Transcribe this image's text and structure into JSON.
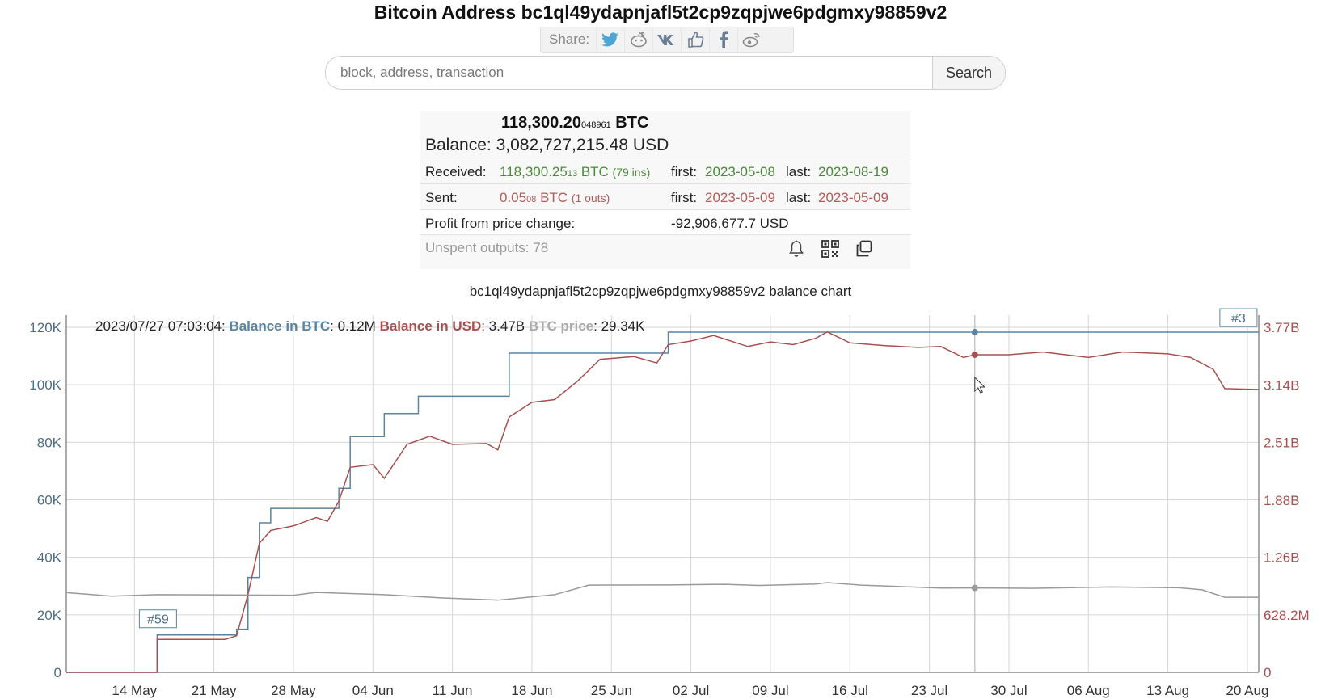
{
  "header": {
    "title": "Bitcoin Address bc1ql49ydapnjafl5t2cp9zqpjwe6pdgmxy98859v2",
    "share_label": "Share:",
    "share_icons": [
      "twitter-icon",
      "reddit-icon",
      "vk-icon",
      "like-icon",
      "facebook-icon",
      "weibo-icon"
    ]
  },
  "search": {
    "placeholder": "block, address, transaction",
    "button": "Search"
  },
  "info": {
    "balance_btc_main": "118,300.20",
    "balance_btc_small": "048961",
    "balance_btc_unit": "BTC",
    "balance_label": "Balance:",
    "balance_usd": "3,082,727,215.48 USD",
    "received_label": "Received:",
    "received_main": "118,300.25",
    "received_small": "13",
    "received_unit": "BTC",
    "received_count": "(79 ins)",
    "received_first_label": "first:",
    "received_first": "2023-05-08",
    "received_last_label": "last:",
    "received_last": "2023-08-19",
    "sent_label": "Sent:",
    "sent_main": "0.05",
    "sent_small": "08",
    "sent_unit": "BTC",
    "sent_count": "(1 outs)",
    "sent_first_label": "first:",
    "sent_first": "2023-05-09",
    "sent_last_label": "last:",
    "sent_last": "2023-05-09",
    "profit_label": "Profit from price change:",
    "profit_value": "-92,906,677.7 USD",
    "unspent": "Unspent outputs: 78",
    "tools": [
      "bell-icon",
      "qr-code-icon",
      "copy-icon"
    ]
  },
  "chart_caption": "bc1ql49ydapnjafl5t2cp9zqpjwe6pdgmxy98859v2 balance chart",
  "readout": {
    "datetime": "2023/07/27 07:03:04:",
    "btc_label": "Balance in BTC",
    "btc_value": ": 0.12M",
    "usd_label": "Balance in USD",
    "usd_value": ": 3.47B",
    "price_label": "BTC price",
    "price_value": ": 29.34K"
  },
  "colors": {
    "btc": "#5a85a0",
    "usd": "#a85050",
    "price": "#9a9a9a",
    "grid": "#d6d6d6"
  },
  "chart_data": {
    "type": "line",
    "x_start": "2023-05-08",
    "x_end": "2023-08-21",
    "x_tick_labels": [
      "14 May",
      "21 May",
      "28 May",
      "04 Jun",
      "11 Jun",
      "18 Jun",
      "25 Jun",
      "02 Jul",
      "09 Jul",
      "16 Jul",
      "23 Jul",
      "30 Jul",
      "06 Aug",
      "13 Aug",
      "20 Aug"
    ],
    "x_tick_dates": [
      "2023-05-14",
      "2023-05-21",
      "2023-05-28",
      "2023-06-04",
      "2023-06-11",
      "2023-06-18",
      "2023-06-25",
      "2023-07-02",
      "2023-07-09",
      "2023-07-16",
      "2023-07-23",
      "2023-07-30",
      "2023-08-06",
      "2023-08-13",
      "2023-08-20"
    ],
    "y_left": {
      "min": 0,
      "max": 120000,
      "ticks": [
        0,
        20000,
        40000,
        60000,
        80000,
        100000,
        120000
      ],
      "tick_labels": [
        "0",
        "20K",
        "40K",
        "60K",
        "80K",
        "100K",
        "120K"
      ]
    },
    "y_right": {
      "min": 0,
      "max": 3770000000,
      "ticks": [
        0,
        628200000,
        1260000000,
        1880000000,
        2510000000,
        3140000000,
        3770000000
      ],
      "tick_labels": [
        "0",
        "628.2M",
        "1.26B",
        "1.88B",
        "2.51B",
        "3.14B",
        "3.77B"
      ]
    },
    "grid": true,
    "series": [
      {
        "name": "Balance in BTC",
        "axis": "left",
        "step": true,
        "points": [
          [
            "2023-05-08",
            0
          ],
          [
            "2023-05-16",
            13000
          ],
          [
            "2023-05-23",
            15000
          ],
          [
            "2023-05-24",
            33000
          ],
          [
            "2023-05-25",
            52000
          ],
          [
            "2023-05-26",
            57000
          ],
          [
            "2023-06-01",
            64000
          ],
          [
            "2023-06-02",
            82000
          ],
          [
            "2023-06-05",
            90000
          ],
          [
            "2023-06-08",
            96000
          ],
          [
            "2023-06-16",
            111000
          ],
          [
            "2023-06-30",
            118300
          ],
          [
            "2023-08-21",
            118300
          ]
        ]
      },
      {
        "name": "Balance in USD",
        "axis": "right",
        "step": false,
        "points": [
          [
            "2023-05-08",
            0
          ],
          [
            "2023-05-16",
            0
          ],
          [
            "2023-05-16",
            360000000
          ],
          [
            "2023-05-22",
            360000000
          ],
          [
            "2023-05-23",
            400000000
          ],
          [
            "2023-05-24",
            850000000
          ],
          [
            "2023-05-25",
            1410000000
          ],
          [
            "2023-05-26",
            1550000000
          ],
          [
            "2023-05-28",
            1600000000
          ],
          [
            "2023-05-30",
            1690000000
          ],
          [
            "2023-05-31",
            1650000000
          ],
          [
            "2023-06-01",
            1870000000
          ],
          [
            "2023-06-02",
            2240000000
          ],
          [
            "2023-06-04",
            2270000000
          ],
          [
            "2023-06-05",
            2120000000
          ],
          [
            "2023-06-07",
            2490000000
          ],
          [
            "2023-06-09",
            2580000000
          ],
          [
            "2023-06-11",
            2490000000
          ],
          [
            "2023-06-14",
            2500000000
          ],
          [
            "2023-06-15",
            2430000000
          ],
          [
            "2023-06-16",
            2790000000
          ],
          [
            "2023-06-18",
            2950000000
          ],
          [
            "2023-06-20",
            2980000000
          ],
          [
            "2023-06-22",
            3180000000
          ],
          [
            "2023-06-24",
            3420000000
          ],
          [
            "2023-06-27",
            3450000000
          ],
          [
            "2023-06-29",
            3380000000
          ],
          [
            "2023-06-30",
            3580000000
          ],
          [
            "2023-07-02",
            3620000000
          ],
          [
            "2023-07-04",
            3680000000
          ],
          [
            "2023-07-07",
            3560000000
          ],
          [
            "2023-07-09",
            3610000000
          ],
          [
            "2023-07-11",
            3580000000
          ],
          [
            "2023-07-13",
            3650000000
          ],
          [
            "2023-07-14",
            3720000000
          ],
          [
            "2023-07-16",
            3600000000
          ],
          [
            "2023-07-19",
            3570000000
          ],
          [
            "2023-07-22",
            3550000000
          ],
          [
            "2023-07-24",
            3560000000
          ],
          [
            "2023-07-26",
            3440000000
          ],
          [
            "2023-07-27",
            3470000000
          ],
          [
            "2023-07-30",
            3470000000
          ],
          [
            "2023-08-02",
            3500000000
          ],
          [
            "2023-08-06",
            3440000000
          ],
          [
            "2023-08-09",
            3500000000
          ],
          [
            "2023-08-13",
            3480000000
          ],
          [
            "2023-08-15",
            3440000000
          ],
          [
            "2023-08-17",
            3310000000
          ],
          [
            "2023-08-18",
            3100000000
          ],
          [
            "2023-08-21",
            3090000000
          ]
        ]
      },
      {
        "name": "BTC price",
        "axis": "left",
        "step": false,
        "points": [
          [
            "2023-05-08",
            27700
          ],
          [
            "2023-05-12",
            26500
          ],
          [
            "2023-05-16",
            27000
          ],
          [
            "2023-05-22",
            26900
          ],
          [
            "2023-05-28",
            26800
          ],
          [
            "2023-05-30",
            27800
          ],
          [
            "2023-06-05",
            27000
          ],
          [
            "2023-06-10",
            25900
          ],
          [
            "2023-06-15",
            25100
          ],
          [
            "2023-06-20",
            27000
          ],
          [
            "2023-06-23",
            30300
          ],
          [
            "2023-06-30",
            30400
          ],
          [
            "2023-07-05",
            30600
          ],
          [
            "2023-07-08",
            30200
          ],
          [
            "2023-07-13",
            30700
          ],
          [
            "2023-07-14",
            31200
          ],
          [
            "2023-07-17",
            30300
          ],
          [
            "2023-07-24",
            29300
          ],
          [
            "2023-07-27",
            29340
          ],
          [
            "2023-08-01",
            29200
          ],
          [
            "2023-08-08",
            29700
          ],
          [
            "2023-08-14",
            29400
          ],
          [
            "2023-08-16",
            28700
          ],
          [
            "2023-08-18",
            26100
          ],
          [
            "2023-08-21",
            26100
          ]
        ]
      }
    ],
    "cursor_date": "2023-07-27",
    "markers": [
      {
        "label": "#59",
        "date": "2023-05-16",
        "value": 13000
      },
      {
        "label": "#3",
        "date": "2023-08-19",
        "value": 118300
      }
    ]
  }
}
